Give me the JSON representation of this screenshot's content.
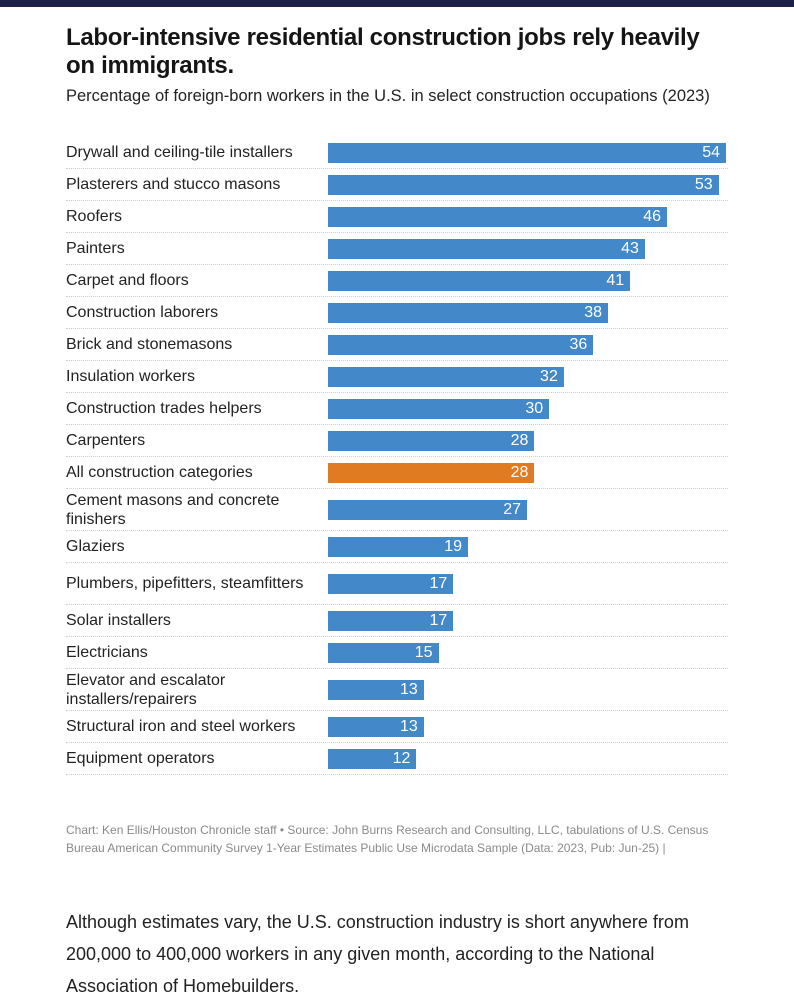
{
  "header": {
    "title": "Labor-intensive residential construction jobs rely heavily on immigrants.",
    "subtitle": "Percentage of foreign-born workers in the U.S. in select construction occupations (2023)"
  },
  "colors": {
    "default_bar": "#4388c8",
    "highlight_bar": "#e07b22",
    "top_bar": "#1c2147"
  },
  "chart_data": {
    "type": "bar",
    "orientation": "horizontal",
    "categories": [
      "Drywall and ceiling-tile installers",
      "Plasterers and stucco masons",
      "Roofers",
      "Painters",
      "Carpet and floors",
      "Construction laborers",
      "Brick and stonemasons",
      "Insulation workers",
      "Construction trades helpers",
      "Carpenters",
      "All construction categories",
      "Cement masons and concrete finishers",
      "Glaziers",
      "Plumbers, pipefitters, steamfitters",
      "Solar installers",
      "Electricians",
      "Elevator and escalator installers/repairers",
      "Structural iron and steel workers",
      "Equipment operators"
    ],
    "values": [
      54,
      53,
      46,
      43,
      41,
      38,
      36,
      32,
      30,
      28,
      28,
      27,
      19,
      17,
      17,
      15,
      13,
      13,
      12
    ],
    "highlight": [
      "All construction categories"
    ],
    "xlim": [
      0,
      54
    ],
    "grid": false,
    "data_labels": true
  },
  "source": "Chart: Ken Ellis/Houston Chronicle staff • Source: John Burns Research and Consulting, LLC, tabulations of U.S. Census Bureau American Community Survey 1-Year Estimates Public Use Microdata Sample (Data: 2023, Pub: Jun-25) |",
  "article": {
    "paragraph": "Although estimates vary, the U.S. construction industry is short anywhere from 200,000 to 400,000 workers in any given month, according to the National Association of Homebuilders."
  }
}
